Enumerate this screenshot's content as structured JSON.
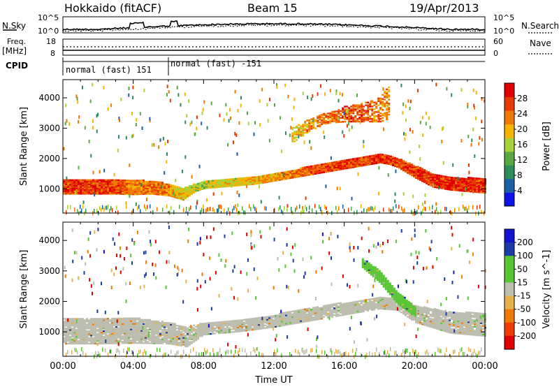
{
  "header": {
    "station": "Hokkaido (fitACF)",
    "beam": "Beam 15",
    "date": "19/Apr/2013"
  },
  "side_labels": {
    "nsky": "N.Sky",
    "nsearch": "N.Search",
    "freq": "Freq.",
    "freq_unit": "[MHz]",
    "nave": "Nave",
    "cpid": "CPID"
  },
  "noise_axis": {
    "left_ticks": [
      "10^5",
      "10^0"
    ],
    "right_ticks": [
      "10^5",
      "10^0"
    ]
  },
  "freq_axis": {
    "left_ticks": [
      "18",
      "8"
    ],
    "right_ticks": [
      "60",
      "0"
    ]
  },
  "cpid_labels": [
    "normal (fast) 151",
    "normal (fast) -151"
  ],
  "colors": {
    "power": [
      "#0a14e6",
      "#1f5fa8",
      "#2f8a5c",
      "#5aa845",
      "#a8d23a",
      "#f5b400",
      "#f07a00",
      "#e83a00",
      "#e00000"
    ],
    "velocity": [
      "#e00000",
      "#f03c00",
      "#f07a00",
      "#e6b04a",
      "#bdbdb0",
      "#b8b8b0",
      "#57c632",
      "#2e8a6e",
      "#1c3aa8",
      "#1414d0"
    ]
  },
  "chart_data": [
    {
      "type": "heatmap",
      "title": "Power",
      "ylabel": "Slant Range [km]",
      "xlabel": "Time UT",
      "x_ticks": [
        "00:00",
        "04:00",
        "08:00",
        "12:00",
        "16:00",
        "20:00",
        "00:00"
      ],
      "x_range_hours": [
        0,
        24
      ],
      "y_ticks": [
        1000,
        2000,
        3000,
        4000
      ],
      "ylim": [
        200,
        4600
      ],
      "colorbar": {
        "label": "Power [dB]",
        "ticks": [
          4,
          8,
          12,
          16,
          20,
          24,
          28
        ],
        "range": [
          0,
          32
        ]
      },
      "series": [
        {
          "name": "main_band",
          "t": [
            0,
            1,
            2,
            3,
            4,
            5,
            6,
            6.8,
            7,
            7.5,
            8,
            9,
            10,
            11,
            12,
            13,
            14,
            15,
            16,
            17,
            18,
            18.5,
            19,
            20,
            21,
            22,
            23,
            24
          ],
          "lo": [
            820,
            820,
            820,
            820,
            800,
            820,
            760,
            620,
            700,
            900,
            1000,
            1050,
            1100,
            1150,
            1250,
            1350,
            1450,
            1550,
            1650,
            1750,
            1850,
            1800,
            1700,
            1350,
            1050,
            950,
            900,
            850
          ],
          "hi": [
            1300,
            1300,
            1300,
            1300,
            1280,
            1250,
            1150,
            1000,
            1050,
            1150,
            1250,
            1300,
            1350,
            1400,
            1500,
            1600,
            1750,
            1850,
            1950,
            2050,
            2150,
            2100,
            2000,
            1750,
            1500,
            1380,
            1350,
            1320
          ],
          "value": [
            26,
            27,
            28,
            26,
            22,
            24,
            22,
            18,
            18,
            18,
            16,
            18,
            18,
            20,
            22,
            24,
            25,
            26,
            27,
            26,
            28,
            26,
            26,
            27,
            28,
            28,
            28,
            27
          ]
        },
        {
          "name": "upper_band",
          "t": [
            13,
            14,
            15,
            16,
            17,
            18,
            18.5
          ],
          "lo": [
            2500,
            2900,
            3150,
            3200,
            3200,
            3200,
            3300
          ],
          "hi": [
            3000,
            3300,
            3500,
            3700,
            3800,
            4000,
            4400
          ],
          "value": [
            18,
            22,
            24,
            26,
            26,
            24,
            22
          ]
        }
      ]
    },
    {
      "type": "heatmap",
      "title": "Velocity",
      "ylabel": "Slant Range [km]",
      "xlabel": "Time UT",
      "x_ticks": [
        "00:00",
        "04:00",
        "08:00",
        "12:00",
        "16:00",
        "20:00",
        "00:00"
      ],
      "x_range_hours": [
        0,
        24
      ],
      "y_ticks": [
        1000,
        2000,
        3000,
        4000
      ],
      "ylim": [
        200,
        4600
      ],
      "colorbar": {
        "label": "Velocity [m s^-1]",
        "ticks": [
          "200",
          "100",
          "50",
          "15",
          "-15",
          "-50",
          "-100",
          "-200"
        ]
      },
      "series": [
        {
          "name": "main_band",
          "t": [
            0,
            2,
            4,
            6,
            7,
            8,
            10,
            12,
            14,
            16,
            18,
            19,
            20,
            22,
            24
          ],
          "lo": [
            600,
            600,
            620,
            600,
            500,
            900,
            1000,
            1150,
            1350,
            1550,
            1750,
            1700,
            1300,
            950,
            850
          ],
          "hi": [
            1450,
            1450,
            1450,
            1300,
            1150,
            1300,
            1400,
            1550,
            1800,
            1950,
            2150,
            2100,
            1850,
            1650,
            1600
          ],
          "value": [
            0,
            0,
            0,
            0,
            0,
            0,
            0,
            0,
            0,
            0,
            0,
            0,
            0,
            0,
            0
          ]
        },
        {
          "name": "green_streak",
          "t": [
            17,
            18,
            19,
            20
          ],
          "lo": [
            3100,
            2600,
            1900,
            1500
          ],
          "hi": [
            3400,
            3000,
            2300,
            1800
          ],
          "value": [
            60,
            60,
            60,
            60
          ]
        }
      ]
    }
  ]
}
